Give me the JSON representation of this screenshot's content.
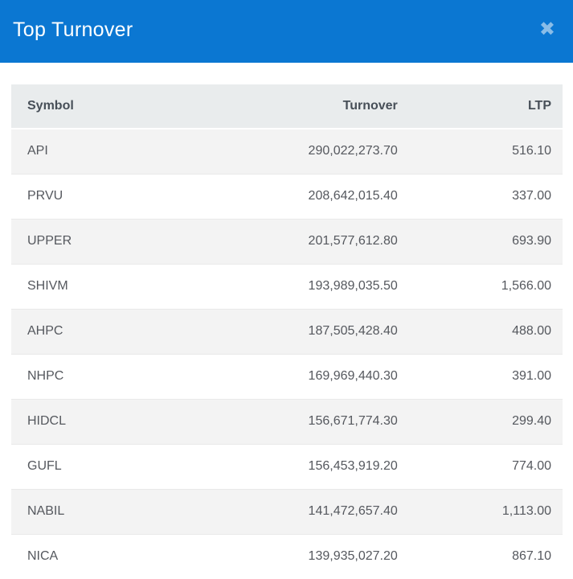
{
  "modal": {
    "title": "Top Turnover",
    "close_glyph": "✖"
  },
  "table": {
    "columns": [
      "Symbol",
      "Turnover",
      "LTP"
    ],
    "rows": [
      {
        "symbol": "API",
        "turnover": "290,022,273.70",
        "ltp": "516.10"
      },
      {
        "symbol": "PRVU",
        "turnover": "208,642,015.40",
        "ltp": "337.00"
      },
      {
        "symbol": "UPPER",
        "turnover": "201,577,612.80",
        "ltp": "693.90"
      },
      {
        "symbol": "SHIVM",
        "turnover": "193,989,035.50",
        "ltp": "1,566.00"
      },
      {
        "symbol": "AHPC",
        "turnover": "187,505,428.40",
        "ltp": "488.00"
      },
      {
        "symbol": "NHPC",
        "turnover": "169,969,440.30",
        "ltp": "391.00"
      },
      {
        "symbol": "HIDCL",
        "turnover": "156,671,774.30",
        "ltp": "299.40"
      },
      {
        "symbol": "GUFL",
        "turnover": "156,453,919.20",
        "ltp": "774.00"
      },
      {
        "symbol": "NABIL",
        "turnover": "141,472,657.40",
        "ltp": "1,113.00"
      },
      {
        "symbol": "NICA",
        "turnover": "139,935,027.20",
        "ltp": "867.10"
      }
    ]
  },
  "colors": {
    "titlebar_bg": "#0b77d2",
    "titlebar_text": "#ffffff",
    "close_icon": "#8abde8",
    "page_bg": "#ffffff",
    "thead_bg": "#e9eced",
    "thead_text": "#474f58",
    "cell_text": "#55585e",
    "stripe_bg": "#f3f3f3",
    "row_border": "#e9e9e9"
  }
}
